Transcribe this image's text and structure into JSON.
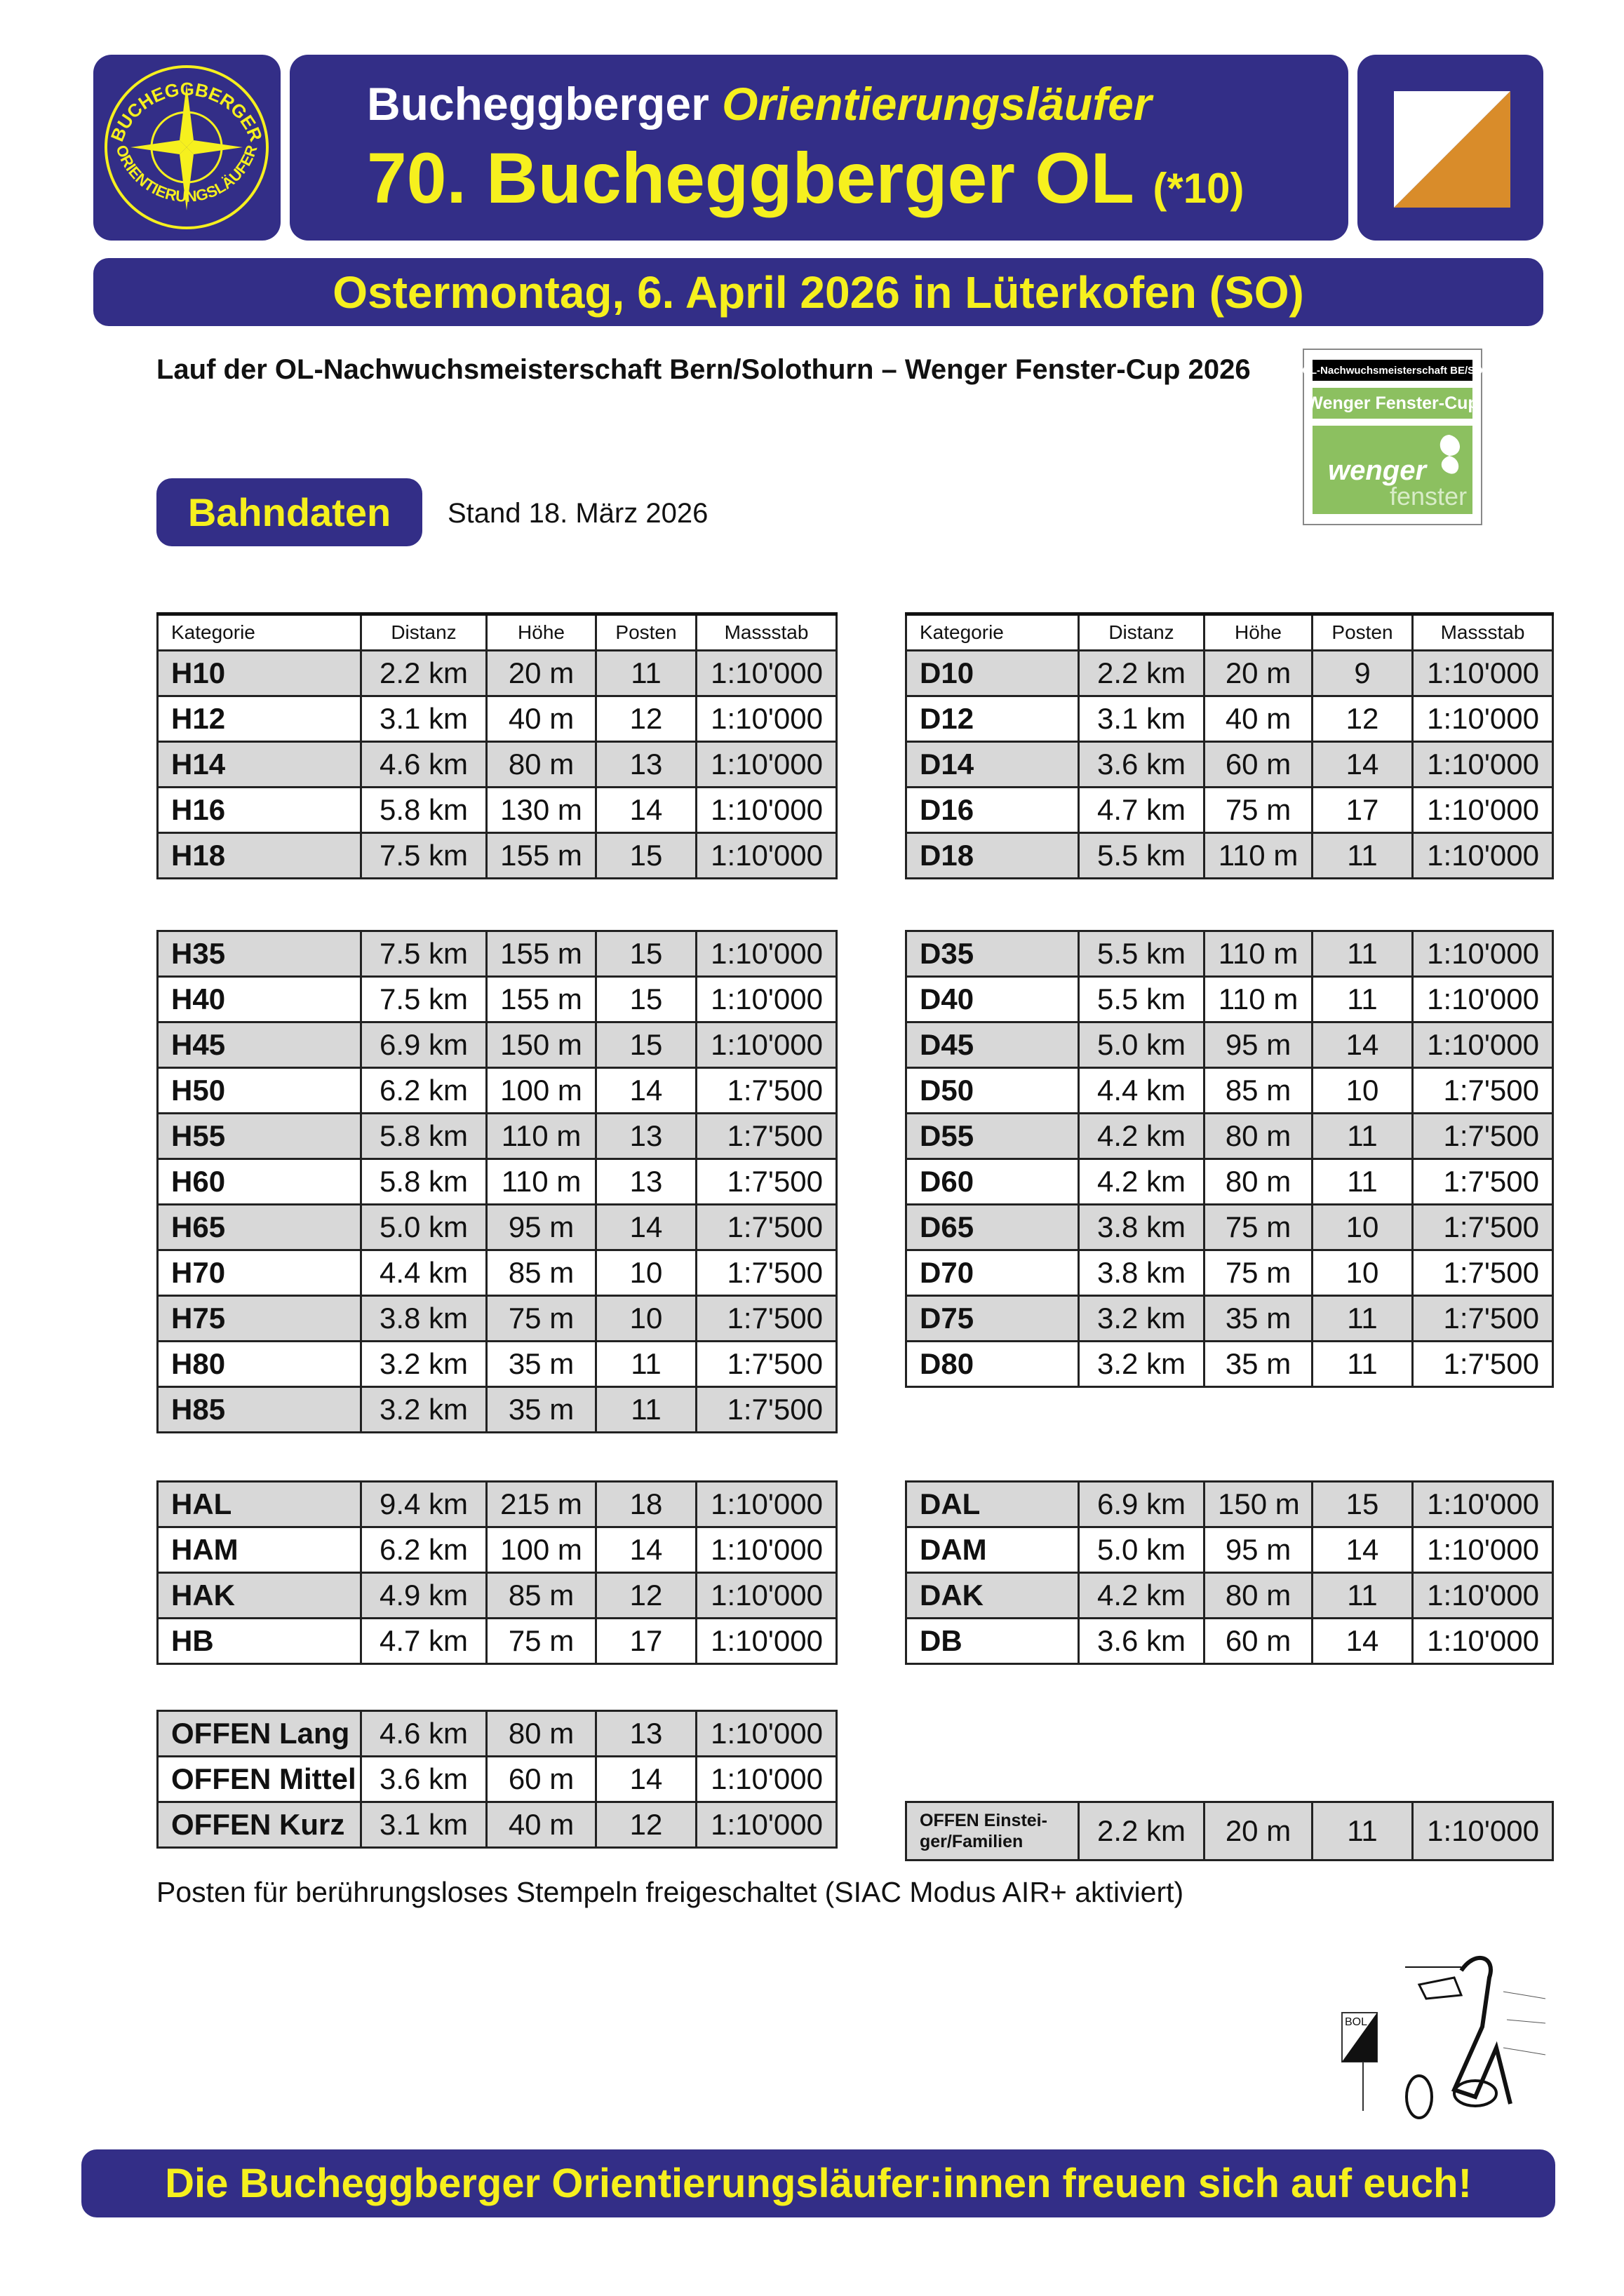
{
  "header": {
    "club_logo_text_top": "BUCHEGGBERGER",
    "club_logo_text_bottom": "ORIENTIERUNGSLÄUFER",
    "org_name_plain": "Bucheggberger",
    "org_name_italic": "Orientierungsläufer",
    "event_title": "70. Bucheggberger OL",
    "event_suffix": "(*10)",
    "date_line": "Ostermontag, 6. April 2026 in Lüterkofen (SO)",
    "colors": {
      "navy": "#332e87",
      "yellow": "#f6f01e",
      "flag_orange": "#d98c2a",
      "sponsor_green": "#8cc060"
    }
  },
  "subtitle": "Lauf der OL-Nachwuchsmeisterschaft Bern/Solothurn – Wenger Fenster-Cup 2026",
  "sponsor": {
    "line1": "OL-Nachwuchsmeisterschaft BE/SO",
    "line2": "Wenger Fenster-Cup",
    "brand_word1": "wenger",
    "brand_word2": "fenster"
  },
  "section": {
    "title": "Bahndaten",
    "stand": "Stand 18. März 2026"
  },
  "columns": [
    "Kategorie",
    "Distanz",
    "Höhe",
    "Posten",
    "Massstab"
  ],
  "left_groups": [
    [
      [
        "H10",
        "2.2 km",
        "20 m",
        "11",
        "1:10'000"
      ],
      [
        "H12",
        "3.1 km",
        "40 m",
        "12",
        "1:10'000"
      ],
      [
        "H14",
        "4.6 km",
        "80 m",
        "13",
        "1:10'000"
      ],
      [
        "H16",
        "5.8 km",
        "130 m",
        "14",
        "1:10'000"
      ],
      [
        "H18",
        "7.5 km",
        "155 m",
        "15",
        "1:10'000"
      ]
    ],
    [
      [
        "H35",
        "7.5 km",
        "155 m",
        "15",
        "1:10'000"
      ],
      [
        "H40",
        "7.5 km",
        "155 m",
        "15",
        "1:10'000"
      ],
      [
        "H45",
        "6.9 km",
        "150 m",
        "15",
        "1:10'000"
      ],
      [
        "H50",
        "6.2 km",
        "100 m",
        "14",
        "1:7'500"
      ],
      [
        "H55",
        "5.8 km",
        "110 m",
        "13",
        "1:7'500"
      ],
      [
        "H60",
        "5.8 km",
        "110 m",
        "13",
        "1:7'500"
      ],
      [
        "H65",
        "5.0 km",
        "95 m",
        "14",
        "1:7'500"
      ],
      [
        "H70",
        "4.4 km",
        "85 m",
        "10",
        "1:7'500"
      ],
      [
        "H75",
        "3.8 km",
        "75 m",
        "10",
        "1:7'500"
      ],
      [
        "H80",
        "3.2 km",
        "35 m",
        "11",
        "1:7'500"
      ],
      [
        "H85",
        "3.2 km",
        "35 m",
        "11",
        "1:7'500"
      ]
    ],
    [
      [
        "HAL",
        "9.4 km",
        "215 m",
        "18",
        "1:10'000"
      ],
      [
        "HAM",
        "6.2 km",
        "100 m",
        "14",
        "1:10'000"
      ],
      [
        "HAK",
        "4.9 km",
        "85 m",
        "12",
        "1:10'000"
      ],
      [
        "HB",
        "4.7 km",
        "75 m",
        "17",
        "1:10'000"
      ]
    ],
    [
      [
        "OFFEN Lang",
        "4.6 km",
        "80 m",
        "13",
        "1:10'000"
      ],
      [
        "OFFEN Mittel",
        "3.6 km",
        "60 m",
        "14",
        "1:10'000"
      ],
      [
        "OFFEN Kurz",
        "3.1 km",
        "40 m",
        "12",
        "1:10'000"
      ]
    ]
  ],
  "right_groups": [
    [
      [
        "D10",
        "2.2 km",
        "20 m",
        "9",
        "1:10'000"
      ],
      [
        "D12",
        "3.1 km",
        "40 m",
        "12",
        "1:10'000"
      ],
      [
        "D14",
        "3.6 km",
        "60 m",
        "14",
        "1:10'000"
      ],
      [
        "D16",
        "4.7 km",
        "75 m",
        "17",
        "1:10'000"
      ],
      [
        "D18",
        "5.5 km",
        "110 m",
        "11",
        "1:10'000"
      ]
    ],
    [
      [
        "D35",
        "5.5 km",
        "110 m",
        "11",
        "1:10'000"
      ],
      [
        "D40",
        "5.5 km",
        "110 m",
        "11",
        "1:10'000"
      ],
      [
        "D45",
        "5.0 km",
        "95 m",
        "14",
        "1:10'000"
      ],
      [
        "D50",
        "4.4 km",
        "85 m",
        "10",
        "1:7'500"
      ],
      [
        "D55",
        "4.2 km",
        "80 m",
        "11",
        "1:7'500"
      ],
      [
        "D60",
        "4.2 km",
        "80 m",
        "11",
        "1:7'500"
      ],
      [
        "D65",
        "3.8 km",
        "75 m",
        "10",
        "1:7'500"
      ],
      [
        "D70",
        "3.8 km",
        "75 m",
        "10",
        "1:7'500"
      ],
      [
        "D75",
        "3.2 km",
        "35 m",
        "11",
        "1:7'500"
      ],
      [
        "D80",
        "3.2 km",
        "35 m",
        "11",
        "1:7'500"
      ]
    ],
    [
      [
        "DAL",
        "6.9 km",
        "150 m",
        "15",
        "1:10'000"
      ],
      [
        "DAM",
        "5.0 km",
        "95 m",
        "14",
        "1:10'000"
      ],
      [
        "DAK",
        "4.2 km",
        "80 m",
        "11",
        "1:10'000"
      ],
      [
        "DB",
        "3.6 km",
        "60 m",
        "14",
        "1:10'000"
      ]
    ],
    [
      [
        "OFFEN Einstei-ger/Familien",
        "2.2 km",
        "20 m",
        "11",
        "1:10'000"
      ]
    ]
  ],
  "note": "Posten für berührungsloses Stempeln freigeschaltet (SIAC Modus AIR+ aktiviert)",
  "cartoon_flag_text": "BOL",
  "footer": "Die Bucheggberger Orientierungsläufer:innen freuen sich auf euch!"
}
